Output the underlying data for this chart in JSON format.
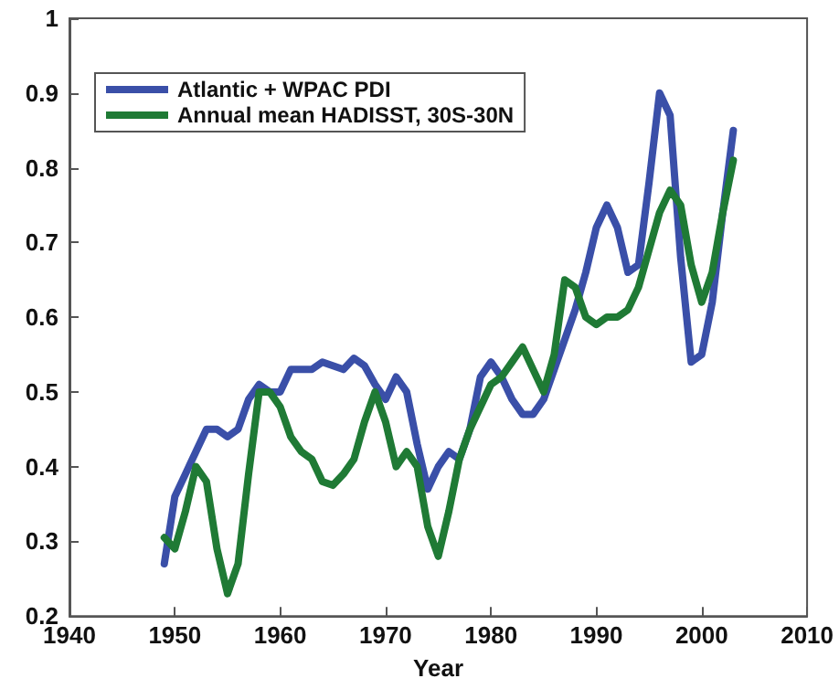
{
  "chart_data": {
    "type": "line",
    "xlabel": "Year",
    "xlim": [
      1940,
      2010
    ],
    "xticks": [
      1940,
      1950,
      1960,
      1970,
      1980,
      1990,
      2000,
      2010
    ],
    "ylim": [
      0.2,
      1
    ],
    "yticks": [
      0.2,
      0.3,
      0.4,
      0.5,
      0.6,
      0.7,
      0.8,
      0.9,
      1
    ],
    "grid": false,
    "legend": "top left",
    "marker": "none",
    "line_style": "solid",
    "x": [
      1949,
      1950,
      1951,
      1952,
      1953,
      1954,
      1955,
      1956,
      1957,
      1958,
      1959,
      1960,
      1961,
      1962,
      1963,
      1964,
      1965,
      1966,
      1967,
      1968,
      1969,
      1970,
      1971,
      1972,
      1973,
      1974,
      1975,
      1976,
      1977,
      1978,
      1979,
      1980,
      1981,
      1982,
      1983,
      1984,
      1985,
      1986,
      1987,
      1988,
      1989,
      1990,
      1991,
      1992,
      1993,
      1994,
      1995,
      1996,
      1997,
      1998,
      1999,
      2000,
      2001,
      2002,
      2003
    ],
    "series": [
      {
        "name": "Atlantic + WPAC PDI",
        "color": "#3a4fa8",
        "values": [
          0.27,
          0.36,
          0.39,
          0.42,
          0.45,
          0.45,
          0.44,
          0.45,
          0.49,
          0.51,
          0.5,
          0.5,
          0.53,
          0.53,
          0.53,
          0.54,
          0.535,
          0.53,
          0.545,
          0.535,
          0.51,
          0.49,
          0.52,
          0.5,
          0.43,
          0.37,
          0.4,
          0.42,
          0.41,
          0.45,
          0.52,
          0.54,
          0.52,
          0.49,
          0.47,
          0.47,
          0.49,
          0.53,
          0.57,
          0.61,
          0.66,
          0.72,
          0.75,
          0.72,
          0.66,
          0.67,
          0.78,
          0.9,
          0.87,
          0.68,
          0.54,
          0.55,
          0.62,
          0.74,
          0.85
        ]
      },
      {
        "name": "Annual mean HADISST, 30S-30N",
        "color": "#1f7a35",
        "values": [
          0.305,
          0.29,
          0.34,
          0.4,
          0.38,
          0.29,
          0.23,
          0.27,
          0.39,
          0.5,
          0.5,
          0.48,
          0.44,
          0.42,
          0.41,
          0.38,
          0.375,
          0.39,
          0.41,
          0.46,
          0.5,
          0.46,
          0.4,
          0.42,
          0.4,
          0.32,
          0.28,
          0.34,
          0.41,
          0.45,
          0.48,
          0.51,
          0.52,
          0.54,
          0.56,
          0.53,
          0.5,
          0.55,
          0.65,
          0.64,
          0.6,
          0.59,
          0.6,
          0.6,
          0.61,
          0.64,
          0.69,
          0.74,
          0.77,
          0.75,
          0.67,
          0.62,
          0.66,
          0.74,
          0.81
        ]
      }
    ]
  }
}
